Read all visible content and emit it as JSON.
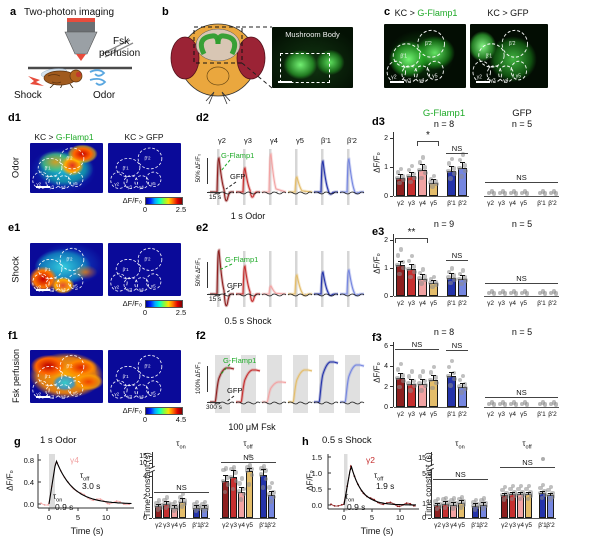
{
  "panel_labels": {
    "a": "a",
    "b": "b",
    "c": "c",
    "d1": "d1",
    "d2": "d2",
    "d3": "d3",
    "e1": "e1",
    "e2": "e2",
    "e3": "e3",
    "f1": "f1",
    "f2": "f2",
    "f3": "f3",
    "g": "g",
    "h": "h"
  },
  "labels": {
    "sensor": "G-Flamp1",
    "control": "GFP",
    "kc_prefix": "KC > ",
    "kc_gfp": "KC > GFP",
    "dff": "ΔF/F₀",
    "tau": "τ",
    "on": "on",
    "off": "off",
    "time_constant": "Time constant (s)",
    "time_s": "Time (s)"
  },
  "palette": {
    "sensor_green": "#1faa28",
    "comp": [
      "#8e1f1f",
      "#c62f2f",
      "#f2a3a3",
      "#e4bd6a",
      "#2433aa",
      "#7586e0"
    ],
    "dot": "#8c8c8c",
    "heat_bg": "#0a0a99"
  },
  "compartments": [
    "γ2",
    "γ3",
    "γ4",
    "γ5",
    "β'1",
    "β'2"
  ],
  "panel_a": {
    "title": "Two-photon imaging",
    "fsk_line1": "Fsk",
    "fsk_line2": "perfusion",
    "shock": "Shock",
    "odor": "Odor"
  },
  "panel_b": {
    "image_title": "Mushroom Body"
  },
  "rows": {
    "d": {
      "stim": "Odor",
      "cb_min": "0",
      "cb_max": "2.5",
      "yscale": "50% ΔF/F₀",
      "xscale": "15 s",
      "stim_label": "1 s Odor"
    },
    "e": {
      "stim": "Shock",
      "cb_min": "0",
      "cb_max": "2.5",
      "yscale": "50% ΔF/F₀",
      "xscale": "15 s",
      "stim_label": "0.5 s Shock"
    },
    "f": {
      "stim": "Fsk perfusion",
      "cb_min": "0",
      "cb_max": "4.5",
      "yscale": "100% ΔF/F₀",
      "xscale": "300 s",
      "stim_label": "100 μM Fsk"
    }
  },
  "chart_data": [
    {
      "id": "d3_sensor",
      "type": "bar",
      "group": "G-Flamp1",
      "n": "n = 8",
      "ylabel": "ΔF/F₀",
      "categories": [
        "γ2",
        "γ3",
        "γ4",
        "γ5",
        "β'1",
        "β'2"
      ],
      "values": [
        0.62,
        0.68,
        0.88,
        0.45,
        0.85,
        0.95
      ],
      "errors": [
        0.12,
        0.12,
        0.18,
        0.1,
        0.15,
        0.18
      ],
      "yticks": [
        "0",
        "1",
        "2"
      ],
      "ylim": [
        0,
        2.2
      ],
      "sig": [
        {
          "style": "bracket",
          "label": "*",
          "from": 2,
          "to": 3
        },
        {
          "style": "line",
          "label": "NS",
          "from": 4,
          "to": 5
        }
      ]
    },
    {
      "id": "d3_gfp",
      "type": "flat",
      "group": "GFP",
      "n": "n = 5",
      "categories": [
        "γ2",
        "γ3",
        "γ4",
        "γ5",
        "β'1",
        "β'2"
      ],
      "values": [
        0.02,
        0.02,
        0.02,
        0.02,
        0.02,
        0.02
      ],
      "sig": [
        {
          "style": "line",
          "label": "NS",
          "from": 0,
          "to": 5
        }
      ]
    },
    {
      "id": "e3_sensor",
      "type": "bar",
      "group": "G-Flamp1",
      "n": "n = 9",
      "ylabel": "ΔF/F₀",
      "categories": [
        "γ2",
        "γ3",
        "γ4",
        "γ5",
        "β'1",
        "β'2"
      ],
      "values": [
        1.1,
        0.95,
        0.62,
        0.45,
        0.65,
        0.6
      ],
      "errors": [
        0.12,
        0.15,
        0.12,
        0.1,
        0.15,
        0.12
      ],
      "yticks": [
        "0",
        "1",
        "2"
      ],
      "ylim": [
        0,
        2.2
      ],
      "sig": [
        {
          "style": "bracket",
          "label": "**",
          "from": 0,
          "to": 2
        },
        {
          "style": "line",
          "label": "NS",
          "from": 4,
          "to": 5
        }
      ]
    },
    {
      "id": "e3_gfp",
      "type": "flat",
      "group": "GFP",
      "n": "n = 5",
      "categories": [
        "γ2",
        "γ3",
        "γ4",
        "γ5",
        "β'1",
        "β'2"
      ],
      "values": [
        0.02,
        0.02,
        0.02,
        0.02,
        0.02,
        0.02
      ],
      "sig": [
        {
          "style": "line",
          "label": "NS",
          "from": 0,
          "to": 5
        }
      ]
    },
    {
      "id": "f3_sensor",
      "type": "bar",
      "group": "G-Flamp1",
      "n": "n = 8",
      "ylabel": "ΔF/F₀",
      "categories": [
        "γ2",
        "γ3",
        "γ4",
        "γ5",
        "β'1",
        "β'2"
      ],
      "values": [
        2.8,
        2.3,
        2.3,
        2.6,
        3.0,
        2.0
      ],
      "errors": [
        0.45,
        0.35,
        0.35,
        0.4,
        0.35,
        0.3
      ],
      "yticks": [
        "0",
        "2",
        "4",
        "6"
      ],
      "ylim": [
        0,
        6.3
      ],
      "sig": [
        {
          "style": "line",
          "label": "NS",
          "from": 0,
          "to": 3
        },
        {
          "style": "line",
          "label": "NS",
          "from": 4,
          "to": 5
        }
      ]
    },
    {
      "id": "f3_gfp",
      "type": "flat",
      "group": "GFP",
      "n": "n = 5",
      "categories": [
        "γ2",
        "γ3",
        "γ4",
        "γ5",
        "β'1",
        "β'2"
      ],
      "values": [
        0.05,
        0.05,
        0.05,
        0.05,
        0.05,
        0.05
      ],
      "sig": [
        {
          "style": "line",
          "label": "NS",
          "from": 0,
          "to": 5
        }
      ]
    },
    {
      "id": "g_tau_on",
      "type": "bar",
      "title": "τon",
      "categories": [
        "γ2",
        "γ3",
        "γ4",
        "γ5",
        "β'1",
        "β'2"
      ],
      "values": [
        1.1,
        1.3,
        1.0,
        1.5,
        1.0,
        1.0
      ],
      "errors": [
        0.15,
        0.2,
        0.15,
        0.3,
        0.15,
        0.15
      ],
      "yticks": [
        "0",
        "2",
        "4",
        "10",
        "15"
      ],
      "ylim": [
        0,
        15
      ],
      "sig": [
        {
          "style": "line",
          "label": "NS",
          "from": 0,
          "to": 5
        }
      ]
    },
    {
      "id": "g_tau_off",
      "type": "bar",
      "title": "τoff",
      "categories": [
        "γ2",
        "γ3",
        "γ4",
        "γ5",
        "β'1",
        "β'2"
      ],
      "values": [
        3.5,
        3.9,
        2.5,
        4.5,
        4.1,
        2.2
      ],
      "errors": [
        0.5,
        0.6,
        0.35,
        0.7,
        0.6,
        0.3
      ],
      "yticks": [],
      "ylim": [
        0,
        15
      ],
      "sig": [
        {
          "style": "line",
          "label": "NS",
          "from": 0,
          "to": 5
        },
        {
          "style": "dot",
          "bar": 3
        }
      ]
    },
    {
      "id": "h_tau_on",
      "type": "bar",
      "title": "τon",
      "categories": [
        "γ2",
        "γ3",
        "γ4",
        "γ5",
        "β'1",
        "β'2"
      ],
      "values": [
        0.9,
        1.0,
        0.95,
        1.05,
        0.85,
        0.95
      ],
      "errors": [
        0.12,
        0.12,
        0.12,
        0.15,
        0.12,
        0.12
      ],
      "yticks": [
        "0",
        "1",
        "5",
        "15"
      ],
      "ylim": [
        0,
        15
      ],
      "sig": [
        {
          "style": "line",
          "label": "NS",
          "from": 0,
          "to": 5
        }
      ]
    },
    {
      "id": "h_tau_off",
      "type": "bar",
      "title": "τoff",
      "categories": [
        "γ2",
        "γ3",
        "γ4",
        "γ5",
        "β'1",
        "β'2"
      ],
      "values": [
        1.9,
        2.0,
        2.0,
        2.0,
        2.1,
        1.9
      ],
      "errors": [
        0.15,
        0.15,
        0.15,
        0.15,
        0.2,
        0.15
      ],
      "yticks": [],
      "ylim": [
        0,
        15
      ],
      "sig": [
        {
          "style": "line",
          "label": "NS",
          "from": 0,
          "to": 5
        },
        {
          "style": "dot",
          "bar": 4
        }
      ]
    },
    {
      "id": "g_trace",
      "type": "line",
      "title": "1 s Odor",
      "series": "γ4",
      "tau_on_val": "0.9 s",
      "tau_off_val": "3.0 s",
      "ylabel": "ΔF/F₀",
      "xlabel": "Time (s)",
      "yticks": [
        "0.8",
        "0.4",
        "0.0"
      ],
      "xticks": [
        "0",
        "5",
        "10"
      ]
    },
    {
      "id": "h_trace",
      "type": "line",
      "title": "0.5 s Shock",
      "series": "γ2",
      "tau_on_val": "0.9 s",
      "tau_off_val": "1.9 s",
      "ylabel": "ΔF/F₀",
      "xlabel": "Time (s)",
      "yticks": [
        "1.5",
        "1.0",
        "0.5",
        "0.0"
      ],
      "xticks": [
        "0",
        "5",
        "10"
      ]
    }
  ]
}
